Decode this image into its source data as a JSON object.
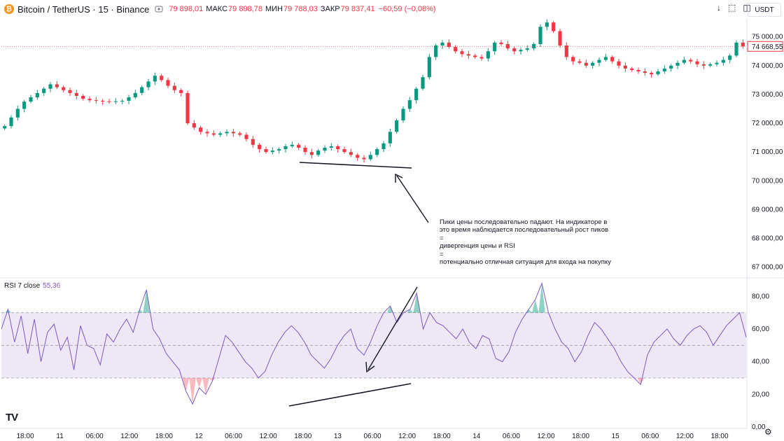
{
  "header": {
    "logo_glyph": "₿",
    "symbol": "Bitcoin / TetherUS · 15 · Binance",
    "ohlc": {
      "open_value": "79 898,01",
      "high_label": "МАКС",
      "high_value": "79 898,78",
      "low_label": "МИН",
      "low_value": "79 788,03",
      "close_label": "ЗАКР",
      "close_value": "79 837,41",
      "change": "−60,59 (−0,08%)"
    },
    "currency": "USDT",
    "icons": [
      "download-arrow-icon",
      "fullscreen-icon",
      "camera-icon"
    ]
  },
  "price_pane": {
    "last_price_label": "74 668,55",
    "y_ticks": [
      "75 000,00",
      "74 000,00",
      "73 000,00",
      "72 000,00",
      "71 000,00",
      "70 000,00",
      "69 000,00",
      "68 000,00",
      "67 000,00"
    ]
  },
  "rsi_pane": {
    "title": "RSI 7 close",
    "value": "55,36",
    "y_ticks": [
      "80,00",
      "60,00",
      "40,00",
      "20,00",
      "0,00"
    ]
  },
  "x_axis": {
    "ticks": [
      "18:00",
      "11",
      "06:00",
      "12:00",
      "18:00",
      "12",
      "06:00",
      "12:00",
      "18:00",
      "13",
      "06:00",
      "12:00",
      "18:00",
      "14",
      "06:00",
      "12:00",
      "18:00",
      "15",
      "06:00",
      "12:00",
      "18:00"
    ]
  },
  "annotation": {
    "lines": [
      "Пики цены последовательно падают. На индикаторе в",
      "это время наблюдается последовательный рост пиков",
      "=",
      "дивергенция цены и RSI",
      "=",
      "потенциально отличная ситуация для входа на покупку"
    ]
  },
  "branding": {
    "logo_text": "TV"
  },
  "colors": {
    "up": "#089981",
    "down": "#f23645",
    "rsi_line": "#7e57c2",
    "rsi_band": "#ede7f6",
    "price_tag": "#f23645"
  },
  "chart_data": {
    "type": "line",
    "title": "",
    "series": [
      {
        "values": [
          71900,
          72200,
          72500,
          72750,
          72900,
          73050,
          73200,
          73350,
          73250,
          73150,
          73050,
          72950,
          72850,
          72800,
          72780,
          72760,
          72740,
          72760,
          72780,
          72900,
          73050,
          73250,
          73450,
          73650,
          73500,
          73300,
          73150,
          73050,
          72000,
          71850,
          71700,
          71650,
          71600,
          71650,
          71700,
          71650,
          71600,
          71450,
          71250,
          71100,
          71000,
          71050,
          71100,
          71200,
          71250,
          71150,
          71000,
          70900,
          71050,
          71150,
          71200,
          71100,
          71000,
          70900,
          70800,
          70750,
          70900,
          71100,
          71300,
          71700,
          72100,
          72500,
          72800,
          73200,
          73600,
          74300,
          74700,
          74800,
          74650,
          74500,
          74400,
          74350,
          74300,
          74250,
          74500,
          74800,
          74750,
          74600,
          74500,
          74550,
          74600,
          74750,
          75350,
          75500,
          75200,
          74700,
          74300,
          74150,
          74100,
          74000,
          74100,
          74200,
          74300,
          74150,
          74000,
          73900,
          73850,
          73800,
          73750,
          73700,
          73800,
          73900,
          74000,
          74100,
          74200,
          74150,
          74050,
          74000,
          74050,
          74100,
          74200,
          74350,
          74800,
          74669
        ]
      },
      {
        "values": [
          60,
          72,
          52,
          68,
          45,
          66,
          40,
          58,
          63,
          47,
          55,
          35,
          62,
          50,
          48,
          38,
          57,
          52,
          60,
          66,
          58,
          72,
          84,
          60,
          54,
          45,
          40,
          35,
          22,
          14,
          24,
          20,
          28,
          42,
          56,
          52,
          46,
          40,
          36,
          30,
          34,
          44,
          52,
          58,
          62,
          58,
          52,
          44,
          40,
          36,
          42,
          50,
          56,
          60,
          48,
          44,
          52,
          62,
          70,
          74,
          64,
          70,
          72,
          82,
          60,
          70,
          64,
          62,
          58,
          54,
          60,
          52,
          48,
          56,
          54,
          42,
          40,
          46,
          58,
          66,
          72,
          78,
          88,
          70,
          60,
          52,
          48,
          40,
          46,
          56,
          64,
          60,
          54,
          48,
          40,
          34,
          30,
          26,
          44,
          52,
          56,
          60,
          54,
          50,
          56,
          60,
          62,
          58,
          50,
          56,
          62,
          66,
          70,
          55
        ]
      }
    ],
    "price_ylim": [
      66700,
      75600
    ],
    "rsi_ylim": [
      0,
      90
    ],
    "rsi_levels": [
      30,
      50,
      70
    ]
  }
}
